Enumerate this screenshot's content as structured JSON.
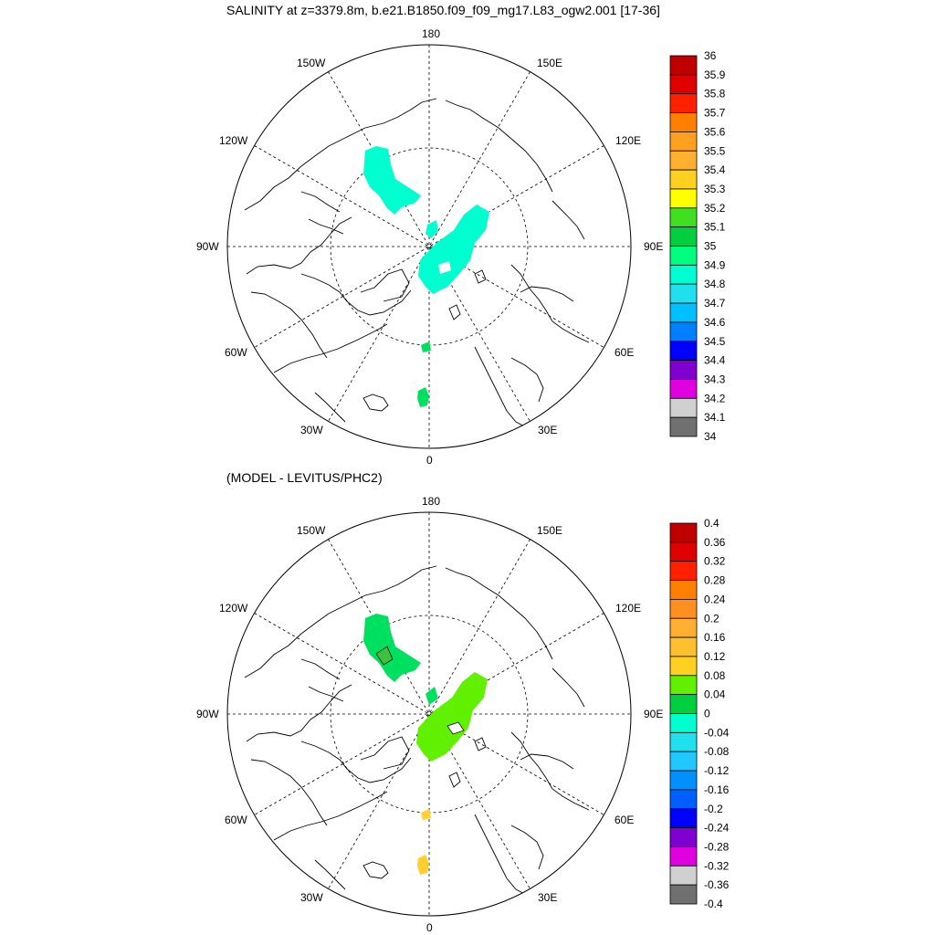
{
  "titles": {
    "top": "SALINITY at z=3379.8m, b.e21.B1850.f09_f09_mg17.L83_ogw2.001 [17-36]",
    "bottom": "(MODEL - LEVITUS/PHC2)"
  },
  "map_labels": {
    "top": "180",
    "bottom": "0",
    "left": "90W",
    "right": "90E",
    "upper_left_1": "150W",
    "upper_left_2": "120W",
    "upper_right_1": "150E",
    "upper_right_2": "120E",
    "lower_left_1": "60W",
    "lower_left_2": "30W",
    "lower_right_1": "60E",
    "lower_right_2": "30E"
  },
  "colorbar_top": {
    "labels": [
      "36",
      "35.9",
      "35.8",
      "35.7",
      "35.6",
      "35.5",
      "35.4",
      "35.3",
      "35.2",
      "35.1",
      "35",
      "34.9",
      "34.8",
      "34.7",
      "34.6",
      "34.5",
      "34.4",
      "34.3",
      "34.2",
      "34.1",
      "34"
    ],
    "colors": [
      "#c00000",
      "#e00000",
      "#ff2000",
      "#ff8000",
      "#ffa020",
      "#ffb030",
      "#ffd020",
      "#ffff00",
      "#40e020",
      "#00d040",
      "#00ff80",
      "#00ffd0",
      "#20e0f0",
      "#00c0ff",
      "#0080ff",
      "#0000ff",
      "#8000d0",
      "#e000e0",
      "#d0d0d0",
      "#707070"
    ]
  },
  "colorbar_bottom": {
    "labels": [
      "0.4",
      "0.36",
      "0.32",
      "0.28",
      "0.24",
      "0.2",
      "0.16",
      "0.12",
      "0.08",
      "0.04",
      "0",
      "-0.04",
      "-0.08",
      "-0.12",
      "-0.16",
      "-0.2",
      "-0.24",
      "-0.28",
      "-0.32",
      "-0.36",
      "-0.4"
    ],
    "colors": [
      "#c00000",
      "#e00000",
      "#ff2000",
      "#ff8000",
      "#ff9020",
      "#ffb030",
      "#ffc030",
      "#ffd020",
      "#60f000",
      "#00d040",
      "#00ffd0",
      "#20e0f0",
      "#20c8ff",
      "#0090ff",
      "#0060ff",
      "#0000ff",
      "#8000d0",
      "#e000e0",
      "#d0d0d0",
      "#707070"
    ]
  },
  "legend_colors": {
    "cyan": "#00ffd0",
    "green": "#00e060",
    "lime": "#60f000",
    "yellow": "#ffd030"
  }
}
